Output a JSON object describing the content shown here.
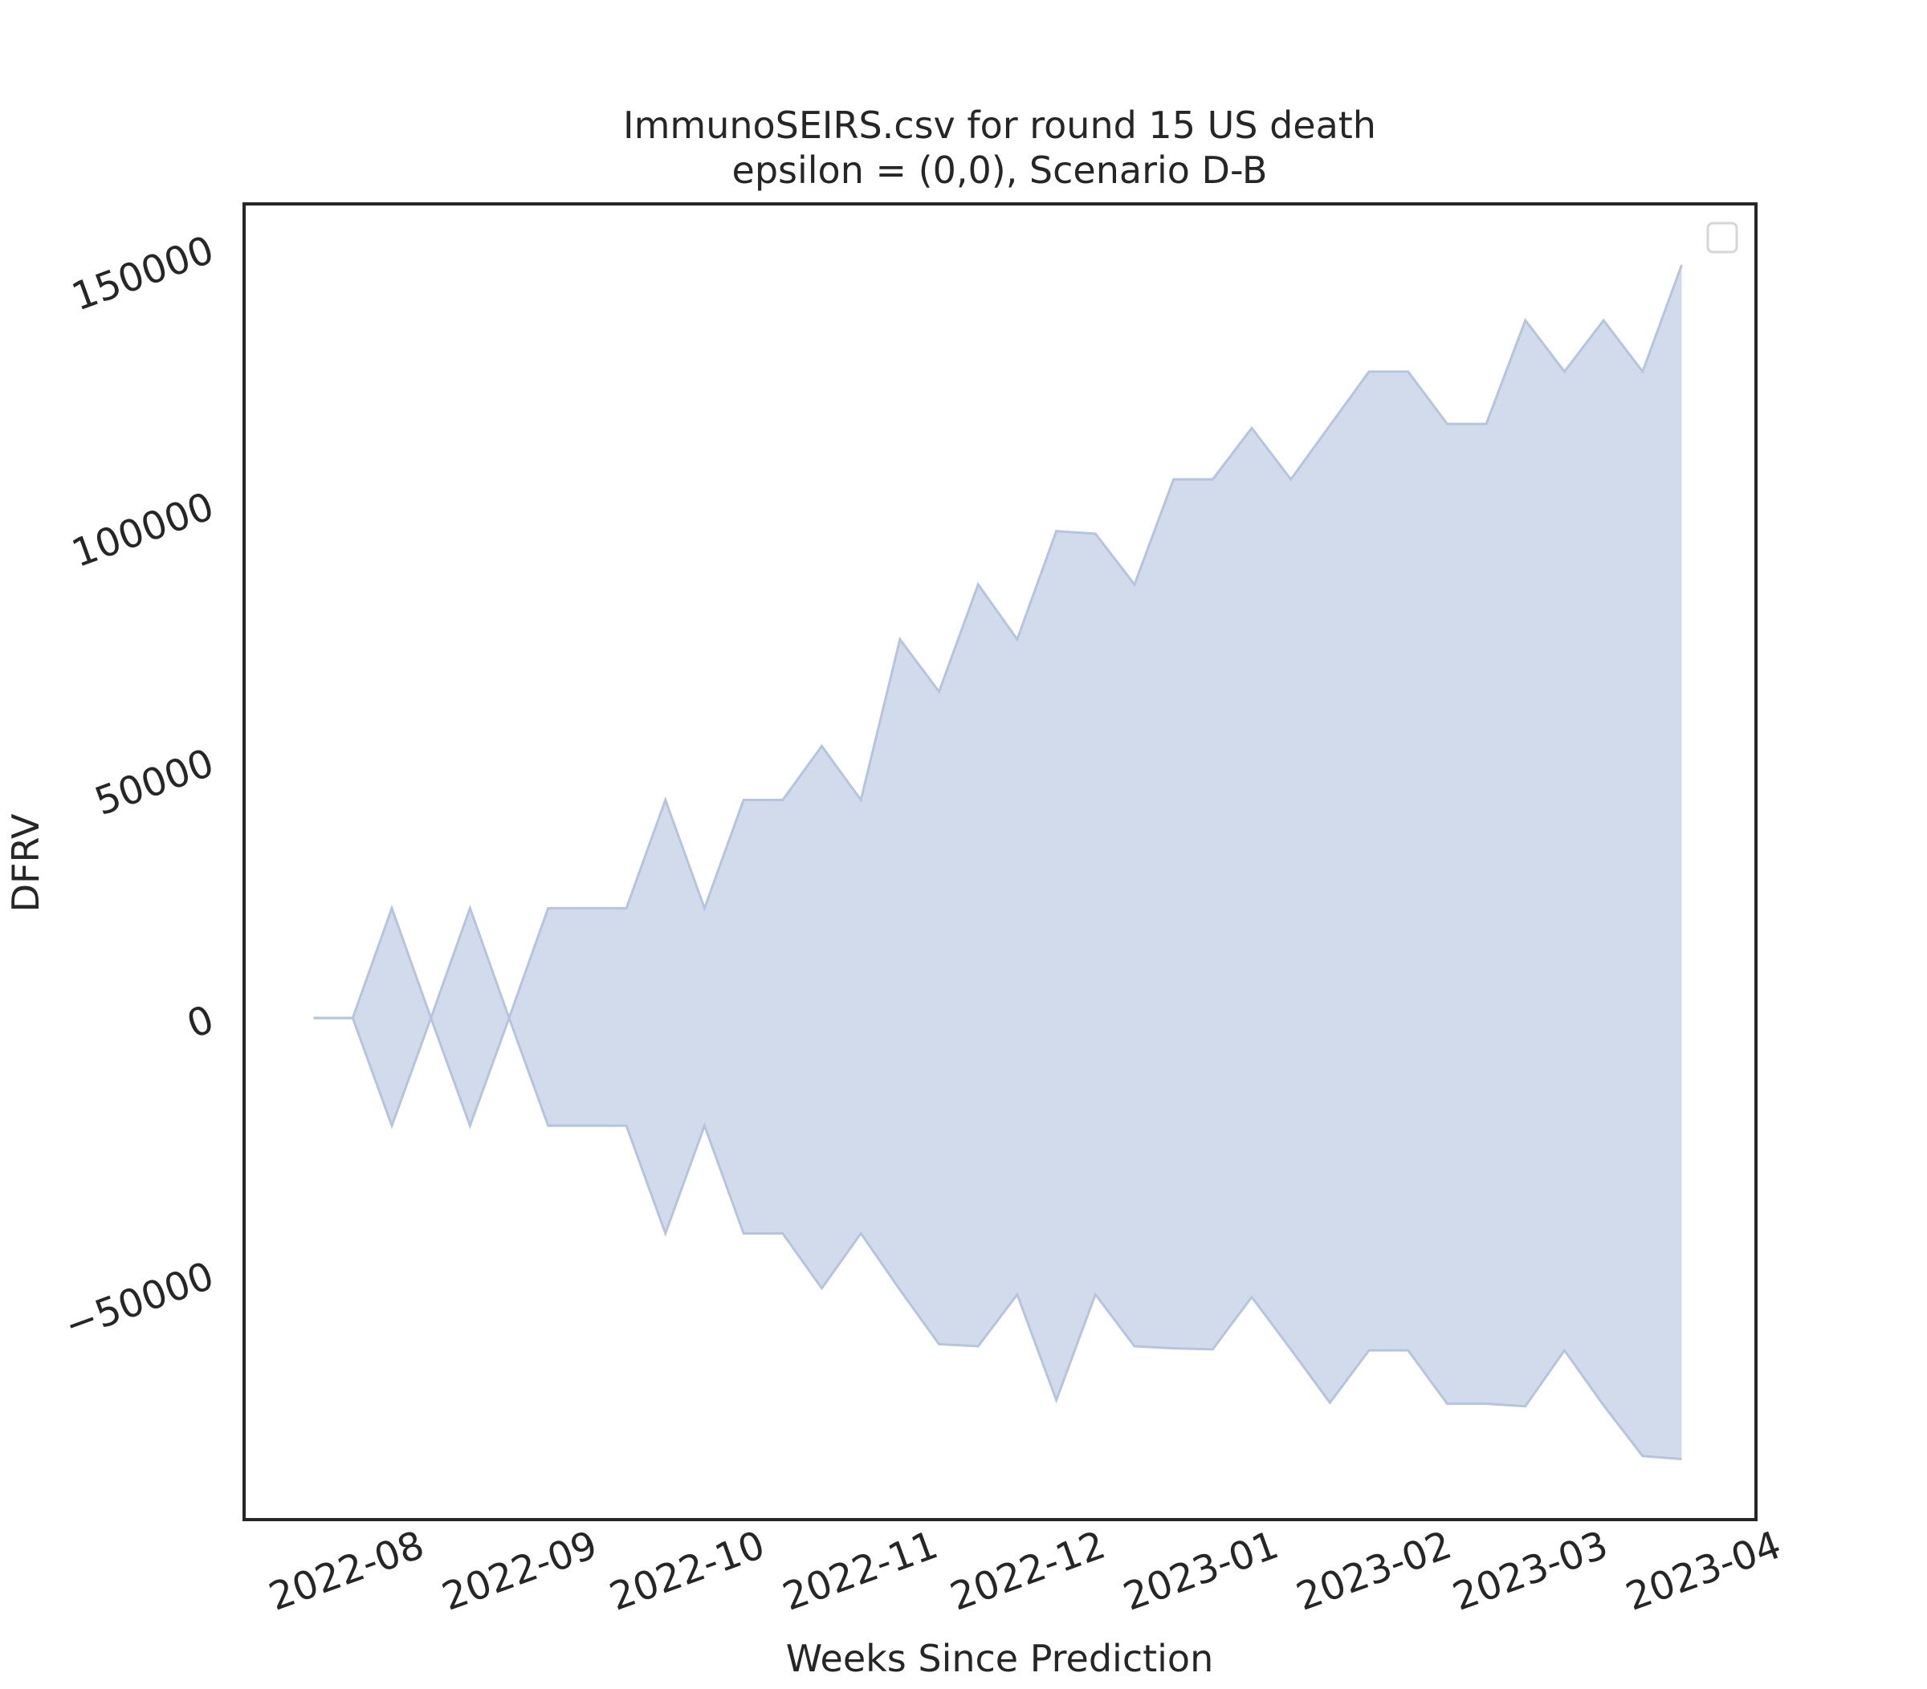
{
  "chart_data": {
    "type": "area",
    "title": "ImmunoSEIRS.csv for round 15 US death",
    "subtitle": "epsilon = (0,0), Scenario D-B",
    "x_label": "Weeks Since Prediction",
    "y_label": "DFRV",
    "color": "#d1dbeb",
    "edge_color": "#b6c4de",
    "x": [
      0,
      1,
      2,
      3,
      4,
      5,
      6,
      7,
      8,
      9,
      10,
      11,
      12,
      13,
      14,
      15,
      16,
      17,
      18,
      19,
      20,
      21,
      22,
      23,
      24,
      25,
      26,
      27,
      28,
      29,
      30,
      31,
      32,
      33,
      34,
      35
    ],
    "y_upper": [
      0,
      0,
      21400,
      0,
      21400,
      0,
      21400,
      21400,
      21400,
      42500,
      21400,
      42500,
      42500,
      53000,
      42500,
      73800,
      63600,
      84500,
      73800,
      94900,
      94400,
      84500,
      105000,
      105000,
      115000,
      105000,
      115500,
      126000,
      126000,
      115800,
      115800,
      136000,
      126000,
      136000,
      126000,
      146800
    ],
    "y_lower": [
      0,
      0,
      -21000,
      0,
      -21000,
      0,
      -21000,
      -21000,
      -21000,
      -42000,
      -21000,
      -42000,
      -42000,
      -52700,
      -42000,
      -53000,
      -63600,
      -64000,
      -53900,
      -74500,
      -53900,
      -64000,
      -64400,
      -64600,
      -54400,
      -64600,
      -75000,
      -64800,
      -64800,
      -75200,
      -75200,
      -75700,
      -64800,
      -75500,
      -85400,
      -86000
    ],
    "xlim": [
      -1.78,
      36.9
    ],
    "ylim": [
      -97800,
      158700
    ],
    "xticks": [
      {
        "value": 0.857,
        "label": "2022-08"
      },
      {
        "value": 5.286,
        "label": "2022-09"
      },
      {
        "value": 9.571,
        "label": "2022-10"
      },
      {
        "value": 14,
        "label": "2022-11"
      },
      {
        "value": 18.286,
        "label": "2022-12"
      },
      {
        "value": 22.714,
        "label": "2023-01"
      },
      {
        "value": 27.143,
        "label": "2023-02"
      },
      {
        "value": 31.143,
        "label": "2023-03"
      },
      {
        "value": 35.571,
        "label": "2023-04"
      }
    ],
    "yticks": [
      {
        "value": -50000,
        "label": "−50000"
      },
      0,
      50000,
      100000,
      150000
    ]
  }
}
